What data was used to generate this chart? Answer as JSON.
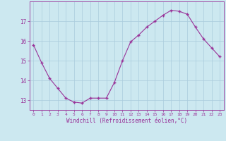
{
  "x": [
    0,
    1,
    2,
    3,
    4,
    5,
    6,
    7,
    8,
    9,
    10,
    11,
    12,
    13,
    14,
    15,
    16,
    17,
    18,
    19,
    20,
    21,
    22,
    23
  ],
  "y": [
    15.8,
    14.9,
    14.1,
    13.6,
    13.1,
    12.9,
    12.85,
    13.1,
    13.1,
    13.1,
    13.9,
    15.0,
    15.95,
    16.3,
    16.7,
    17.0,
    17.3,
    17.55,
    17.5,
    17.35,
    16.7,
    16.1,
    15.65,
    15.2
  ],
  "line_color": "#993399",
  "marker": "+",
  "marker_size": 3,
  "linewidth": 0.8,
  "bg_color": "#cce8f0",
  "grid_color": "#aaccdd",
  "xlabel": "Windchill (Refroidissement éolien,°C)",
  "xlabel_color": "#993399",
  "tick_color": "#993399",
  "label_color": "#993399",
  "yticks": [
    13,
    14,
    15,
    16,
    17
  ],
  "xtick_labels": [
    "0",
    "1",
    "2",
    "3",
    "4",
    "5",
    "6",
    "7",
    "8",
    "9",
    "10",
    "11",
    "12",
    "13",
    "14",
    "15",
    "16",
    "17",
    "18",
    "19",
    "20",
    "21",
    "22",
    "23"
  ],
  "ylim": [
    12.5,
    18.0
  ],
  "xlim": [
    -0.5,
    23.5
  ]
}
